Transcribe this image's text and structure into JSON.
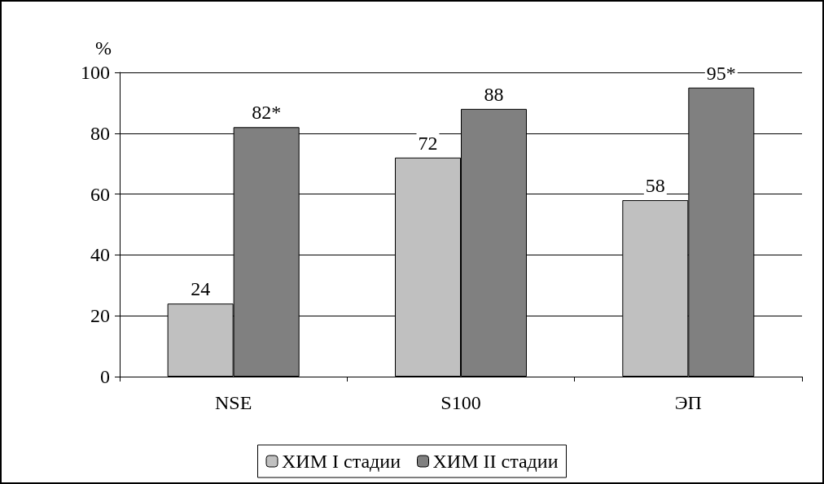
{
  "chart_data": {
    "type": "bar",
    "ylabel": "%",
    "categories": [
      "NSE",
      "S100",
      "ЭП"
    ],
    "series": [
      {
        "name": "ХИМ I стадии",
        "color": "#c0c0c0",
        "values": [
          24,
          72,
          58
        ],
        "value_labels": [
          "24",
          "72",
          "58"
        ]
      },
      {
        "name": "ХИМ II стадии",
        "color": "#808080",
        "values": [
          82,
          88,
          95
        ],
        "value_labels": [
          "82*",
          "88",
          "95*"
        ]
      }
    ],
    "ylim": [
      0,
      100
    ],
    "yticks": [
      0,
      20,
      40,
      60,
      80,
      100
    ],
    "grid": "y",
    "legend": "bottom"
  }
}
